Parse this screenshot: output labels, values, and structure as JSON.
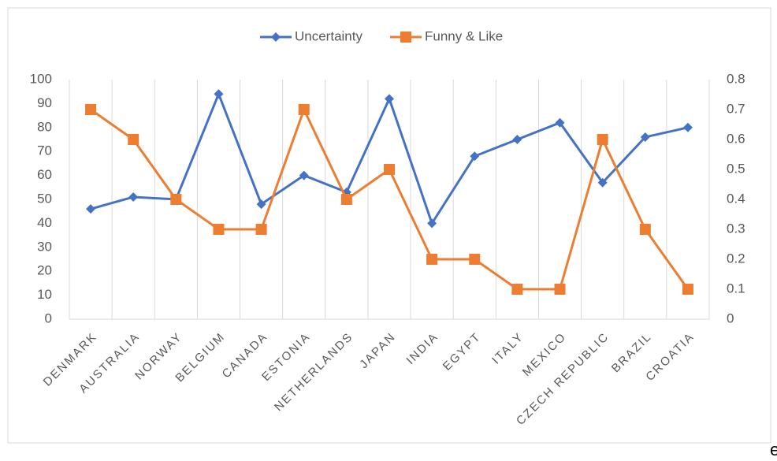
{
  "chart_data": {
    "type": "line",
    "categories": [
      "DENMARK",
      "AUSTRALIA",
      "NORWAY",
      "BELGIUM",
      "CANADA",
      "ESTONIA",
      "NETHERLANDS",
      "JAPAN",
      "INDIA",
      "EGYPT",
      "ITALY",
      "MEXICO",
      "CZECH REPUBLIC",
      "BRAZIL",
      "CROATIA"
    ],
    "series": [
      {
        "name": "Uncertainty",
        "color": "#4472c4",
        "marker": "diamond",
        "values": [
          46,
          51,
          50,
          94,
          48,
          60,
          53,
          92,
          40,
          68,
          75,
          82,
          57,
          76,
          80
        ]
      },
      {
        "name": "Funny & Like",
        "color": "#ed7d31",
        "marker": "square",
        "axis": "y2",
        "values": [
          0.7,
          0.6,
          0.4,
          0.3,
          0.3,
          0.7,
          0.4,
          0.5,
          0.2,
          0.2,
          0.1,
          0.1,
          0.6,
          0.3,
          0.1
        ]
      }
    ],
    "ylim": [
      0,
      100
    ],
    "yticks": [
      0,
      10,
      20,
      30,
      40,
      50,
      60,
      70,
      80,
      90,
      100
    ],
    "y2lim": [
      0,
      0.8
    ],
    "y2ticks": [
      0,
      0.1,
      0.2,
      0.3,
      0.4,
      0.5,
      0.6,
      0.7,
      0.8
    ],
    "legend": "top"
  },
  "trailing_text": "e"
}
